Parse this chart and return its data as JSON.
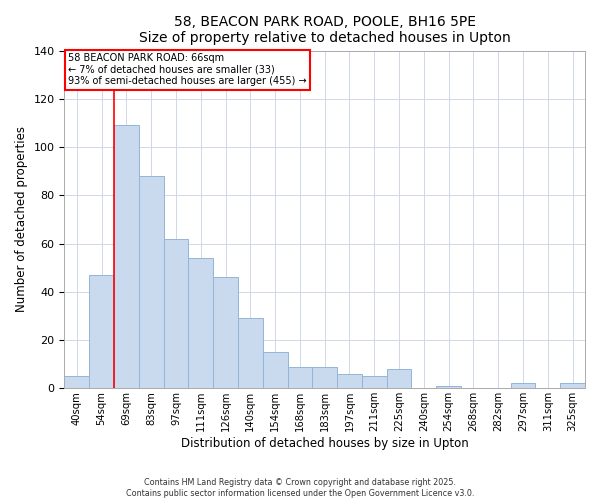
{
  "title": "58, BEACON PARK ROAD, POOLE, BH16 5PE",
  "subtitle": "Size of property relative to detached houses in Upton",
  "xlabel": "Distribution of detached houses by size in Upton",
  "ylabel": "Number of detached properties",
  "bar_labels": [
    "40sqm",
    "54sqm",
    "69sqm",
    "83sqm",
    "97sqm",
    "111sqm",
    "126sqm",
    "140sqm",
    "154sqm",
    "168sqm",
    "183sqm",
    "197sqm",
    "211sqm",
    "225sqm",
    "240sqm",
    "254sqm",
    "268sqm",
    "282sqm",
    "297sqm",
    "311sqm",
    "325sqm"
  ],
  "bar_values": [
    5,
    47,
    109,
    88,
    62,
    54,
    46,
    29,
    15,
    9,
    9,
    6,
    5,
    8,
    0,
    1,
    0,
    0,
    2,
    0,
    2
  ],
  "bar_color": "#c9d9ee",
  "bar_edge_color": "#93b5d8",
  "ylim": [
    0,
    140
  ],
  "yticks": [
    0,
    20,
    40,
    60,
    80,
    100,
    120,
    140
  ],
  "red_line_index": 2,
  "annotation_title": "58 BEACON PARK ROAD: 66sqm",
  "annotation_line1": "← 7% of detached houses are smaller (33)",
  "annotation_line2": "93% of semi-detached houses are larger (455) →",
  "footer1": "Contains HM Land Registry data © Crown copyright and database right 2025.",
  "footer2": "Contains public sector information licensed under the Open Government Licence v3.0.",
  "background_color": "#ffffff",
  "plot_bg_color": "#ffffff",
  "grid_color": "#d0d8e8"
}
